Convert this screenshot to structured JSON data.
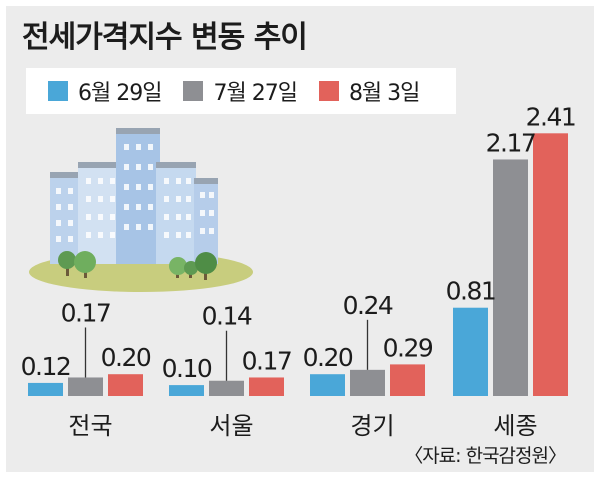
{
  "chart_data": {
    "type": "bar",
    "title": "전세가격지수 변동 추이",
    "categories": [
      "전국",
      "서울",
      "경기",
      "세종"
    ],
    "series": [
      {
        "name": "6월 29일",
        "color": "#4aa7d8",
        "values": [
          0.12,
          0.1,
          0.2,
          0.81
        ]
      },
      {
        "name": "7월 27일",
        "color": "#8e8f93",
        "values": [
          0.17,
          0.14,
          0.24,
          2.17
        ]
      },
      {
        "name": "8월 3일",
        "color": "#e2625b",
        "values": [
          0.2,
          0.17,
          0.29,
          2.41
        ]
      }
    ],
    "value_labels": [
      [
        "0.12",
        "0.10",
        "0.20",
        "0.81"
      ],
      [
        "0.17",
        "0.14",
        "0.24",
        "2.17"
      ],
      [
        "0.20",
        "0.17",
        "0.29",
        "2.41"
      ]
    ],
    "source": "〈자료: 한국감정원〉"
  },
  "illustration": "apartment-buildings-with-trees"
}
